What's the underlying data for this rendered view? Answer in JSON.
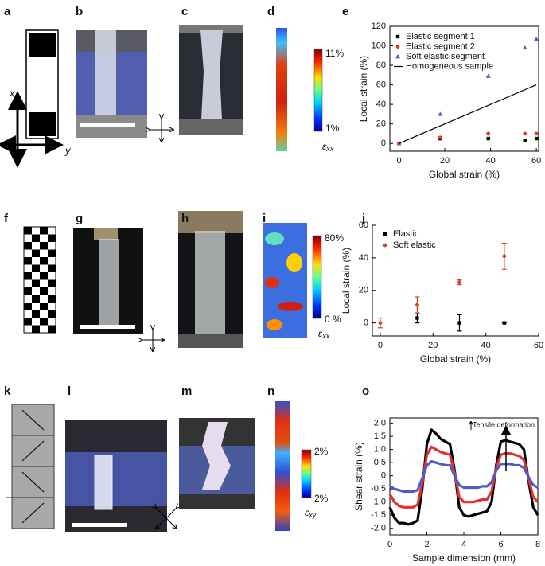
{
  "panels": {
    "labels": [
      "a",
      "b",
      "c",
      "d",
      "e",
      "f",
      "g",
      "h",
      "i",
      "j",
      "k",
      "l",
      "m",
      "n",
      "o"
    ]
  },
  "panel_a": {
    "x_arrow": "x",
    "y_arrow": "y"
  },
  "colorbars": [
    {
      "max": "11%",
      "min": "1%",
      "symbol": "ε",
      "subscript": "xx"
    },
    {
      "max": "80%",
      "min": "0 %",
      "symbol": "ε",
      "subscript": "xx"
    },
    {
      "max": "2%",
      "min": "2%",
      "symbol": "ε",
      "subscript": "xy"
    }
  ],
  "chart_data": [
    {
      "type": "scatter",
      "xlabel": "Global strain (%)",
      "ylabel": "Local strain (%)",
      "xlim": [
        -4,
        61
      ],
      "ylim": [
        -8,
        120
      ],
      "xticks": [
        0,
        20,
        40,
        60
      ],
      "yticks": [
        0,
        20,
        40,
        60,
        80,
        100,
        120
      ],
      "legend": "upper left",
      "series": [
        {
          "name": "Elastic segment 1",
          "color": "#000000",
          "marker": "square",
          "x": [
            0,
            18,
            39,
            55,
            60
          ],
          "values": [
            0,
            5,
            5,
            3,
            5
          ]
        },
        {
          "name": "Elastic segment 2",
          "color": "#d9402a",
          "marker": "circle",
          "x": [
            0,
            18,
            39,
            55,
            60
          ],
          "values": [
            0,
            6,
            10,
            10,
            10
          ]
        },
        {
          "name": "Soft elastic segment",
          "color": "#4a5fc1",
          "marker": "triangle",
          "x": [
            18,
            39,
            55,
            60
          ],
          "values": [
            30,
            69,
            98,
            107
          ]
        },
        {
          "name": "Homogeneous sample",
          "color": "#000000",
          "marker": "line",
          "x": [
            0,
            60
          ],
          "values": [
            0,
            60
          ]
        }
      ]
    },
    {
      "type": "scatter",
      "xlabel": "Global strain (%)",
      "ylabel": "Local strain (%)",
      "xlim": [
        -3,
        60
      ],
      "ylim": [
        -8,
        60
      ],
      "xticks": [
        0,
        20,
        40,
        60
      ],
      "yticks": [
        0,
        20,
        40,
        60
      ],
      "legend": "upper left",
      "series": [
        {
          "name": "Elastic",
          "color": "#000000",
          "marker": "square",
          "x": [
            14,
            30,
            47
          ],
          "values": [
            3,
            0,
            0
          ],
          "errors": [
            3,
            5,
            0
          ]
        },
        {
          "name": "Soft elastic",
          "color": "#d9402a",
          "marker": "circle",
          "x": [
            0,
            14,
            30,
            47
          ],
          "values": [
            0,
            11,
            25,
            41
          ],
          "errors": [
            3,
            5,
            1.5,
            8
          ]
        }
      ]
    },
    {
      "type": "line",
      "xlabel": "Sample dimension (mm)",
      "ylabel": "Shear strain (%)",
      "annotation": "Tensile deformation",
      "xlim": [
        0,
        8
      ],
      "ylim": [
        -2.25,
        2.2
      ],
      "xticks": [
        0,
        2,
        4,
        6,
        8
      ],
      "yticks": [
        {
          "value": -2,
          "label": "-2.0"
        },
        -1.5,
        {
          "value": -1,
          "label": "-1.0"
        },
        -0.5,
        0,
        0.5,
        {
          "value": 1,
          "label": "1.0"
        },
        1.5,
        {
          "value": 2,
          "label": "2.0"
        }
      ],
      "x": [
        0,
        0.25,
        0.5,
        0.75,
        1,
        1.25,
        1.5,
        1.75,
        2,
        2.25,
        2.5,
        2.75,
        3,
        3.25,
        3.5,
        3.75,
        4,
        4.25,
        4.5,
        4.75,
        5,
        5.25,
        5.5,
        5.75,
        6,
        6.25,
        6.5,
        6.75,
        7,
        7.25,
        7.5,
        7.75,
        8
      ],
      "series": [
        {
          "color": "#000000",
          "values": [
            -1.2,
            -1.6,
            -1.8,
            -1.8,
            -1.85,
            -1.8,
            -1.7,
            -0.5,
            1.2,
            1.75,
            1.6,
            1.4,
            1.3,
            1.2,
            0.2,
            -1.2,
            -1.5,
            -1.55,
            -1.5,
            -1.45,
            -1.4,
            -1.35,
            -1.0,
            0.4,
            1.3,
            1.35,
            1.3,
            1.25,
            1.2,
            1.0,
            -0.2,
            -1.2,
            -1.5
          ]
        },
        {
          "color": "#e03030",
          "values": [
            -0.7,
            -1.0,
            -1.15,
            -1.2,
            -1.2,
            -1.2,
            -1.1,
            -0.3,
            0.8,
            1.1,
            1.0,
            0.9,
            0.85,
            0.8,
            0.1,
            -0.8,
            -1.0,
            -1.0,
            -1.0,
            -0.95,
            -0.9,
            -0.9,
            -0.6,
            0.3,
            0.8,
            0.85,
            0.85,
            0.8,
            0.75,
            0.6,
            -0.1,
            -0.8,
            -1.0
          ]
        },
        {
          "color": "#4a5fc1",
          "values": [
            -0.4,
            -0.5,
            -0.55,
            -0.6,
            -0.6,
            -0.6,
            -0.55,
            -0.1,
            0.4,
            0.55,
            0.5,
            0.45,
            0.4,
            0.4,
            0.0,
            -0.35,
            -0.45,
            -0.45,
            -0.45,
            -0.45,
            -0.4,
            -0.4,
            -0.25,
            0.2,
            0.45,
            0.45,
            0.45,
            0.4,
            0.4,
            0.3,
            -0.05,
            -0.35,
            -0.45
          ]
        }
      ]
    }
  ]
}
